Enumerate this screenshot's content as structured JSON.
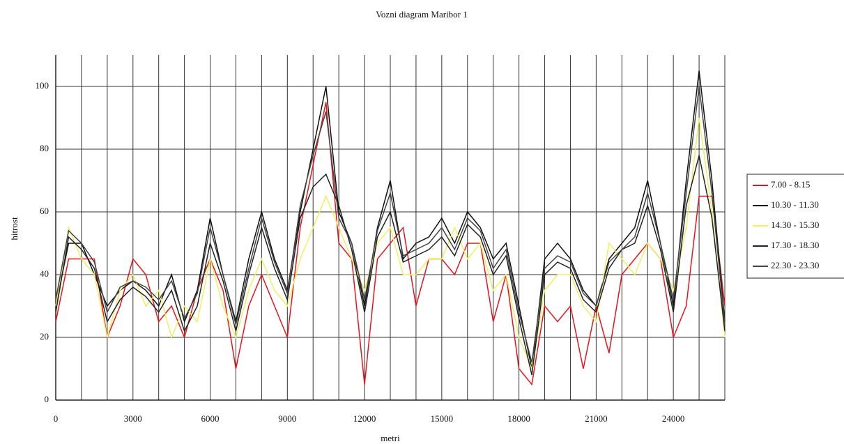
{
  "chart_data": {
    "type": "line",
    "title": "Vozni diagram Maribor 1",
    "xlabel": "metri",
    "ylabel": "hitrost",
    "x": [
      0,
      500,
      1000,
      1500,
      2000,
      2500,
      3000,
      3500,
      4000,
      4500,
      5000,
      5500,
      6000,
      6500,
      7000,
      7500,
      8000,
      8500,
      9000,
      9500,
      10000,
      10500,
      11000,
      11500,
      12000,
      12500,
      13000,
      13500,
      14000,
      14500,
      15000,
      15500,
      16000,
      16500,
      17000,
      17500,
      18000,
      18500,
      19000,
      19500,
      20000,
      20500,
      21000,
      21500,
      22000,
      22500,
      23000,
      23500,
      24000,
      24500,
      25000,
      25500,
      26000
    ],
    "series": [
      {
        "name": "7.00 - 8.15",
        "color": "#e8141b",
        "values": [
          25,
          45,
          45,
          45,
          20,
          30,
          45,
          40,
          25,
          30,
          20,
          35,
          45,
          35,
          10,
          30,
          40,
          30,
          20,
          55,
          75,
          95,
          50,
          45,
          5,
          45,
          50,
          55,
          30,
          45,
          45,
          40,
          50,
          50,
          25,
          40,
          10,
          5,
          30,
          25,
          30,
          10,
          30,
          15,
          40,
          45,
          50,
          45,
          20,
          30,
          65,
          65,
          30
        ]
      },
      {
        "name": "10.30 - 11.30",
        "color": "#111111",
        "values": [
          30,
          50,
          50,
          40,
          30,
          35,
          38,
          35,
          30,
          40,
          25,
          35,
          58,
          40,
          25,
          45,
          60,
          45,
          35,
          60,
          80,
          100,
          60,
          50,
          30,
          55,
          70,
          45,
          50,
          52,
          58,
          50,
          60,
          55,
          45,
          50,
          30,
          10,
          45,
          50,
          45,
          35,
          30,
          45,
          50,
          55,
          70,
          50,
          30,
          70,
          105,
          70,
          25
        ]
      },
      {
        "name": "14.30  - 15.30",
        "color": "#f2ee60",
        "values": [
          30,
          55,
          45,
          40,
          20,
          35,
          40,
          30,
          35,
          20,
          30,
          25,
          45,
          30,
          20,
          35,
          45,
          35,
          30,
          45,
          55,
          65,
          55,
          45,
          35,
          50,
          55,
          40,
          40,
          45,
          45,
          55,
          45,
          50,
          35,
          40,
          20,
          10,
          35,
          40,
          40,
          30,
          25,
          50,
          45,
          40,
          50,
          45,
          35,
          55,
          90,
          60,
          20
        ]
      },
      {
        "name": "17.30 - 18.30",
        "color": "#222222",
        "values": [
          28,
          52,
          48,
          42,
          25,
          32,
          36,
          33,
          28,
          35,
          22,
          30,
          50,
          38,
          22,
          40,
          55,
          42,
          32,
          58,
          68,
          72,
          62,
          48,
          28,
          52,
          60,
          44,
          46,
          48,
          52,
          46,
          56,
          52,
          40,
          46,
          26,
          8,
          40,
          44,
          42,
          32,
          28,
          42,
          48,
          50,
          62,
          48,
          28,
          62,
          78,
          58,
          22
        ]
      },
      {
        "name": "22.30 - 23.30",
        "color": "#444444",
        "values": [
          32,
          54,
          50,
          44,
          28,
          36,
          38,
          36,
          32,
          38,
          26,
          34,
          55,
          40,
          24,
          42,
          58,
          44,
          34,
          62,
          78,
          92,
          58,
          50,
          32,
          54,
          66,
          46,
          48,
          50,
          55,
          48,
          58,
          54,
          42,
          48,
          28,
          12,
          42,
          46,
          44,
          34,
          30,
          44,
          48,
          52,
          66,
          50,
          32,
          66,
          100,
          66,
          24
        ]
      }
    ],
    "xlim": [
      0,
      26000
    ],
    "ylim": [
      0,
      110
    ],
    "xticks": [
      0,
      3000,
      6000,
      9000,
      12000,
      15000,
      18000,
      21000,
      24000
    ],
    "xminor_ticks": [
      1000,
      2000,
      4000,
      5000,
      7000,
      8000,
      10000,
      11000,
      13000,
      14000,
      16000,
      17000,
      19000,
      20000,
      22000,
      23000,
      25000,
      26000
    ],
    "yticks": [
      0,
      20,
      40,
      60,
      80,
      100
    ],
    "grid": true,
    "legend": "right"
  }
}
